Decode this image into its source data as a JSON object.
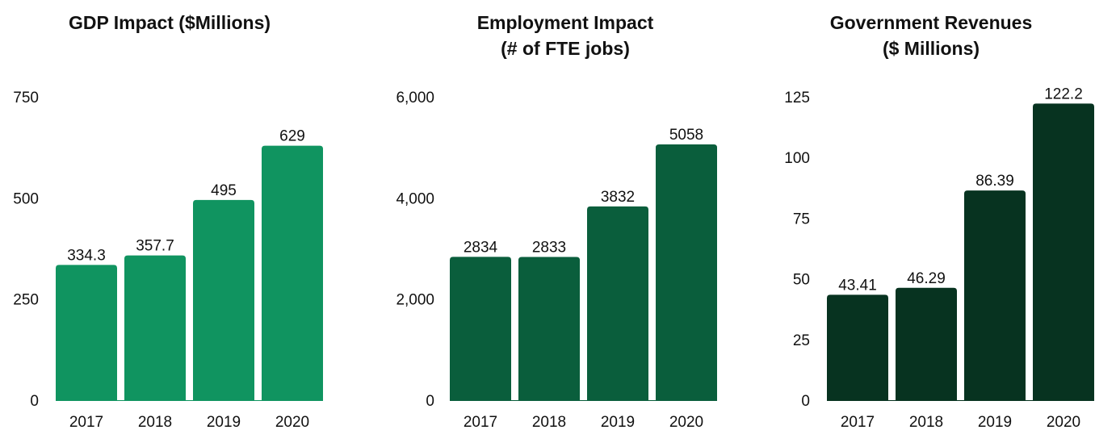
{
  "chart_data": [
    {
      "type": "bar",
      "title": [
        "GDP Impact ($Millions)"
      ],
      "categories": [
        "2017",
        "2018",
        "2019",
        "2020"
      ],
      "values": [
        334.3,
        357.7,
        495,
        629
      ],
      "value_labels": [
        "334.3",
        "357.7",
        "495",
        "629"
      ],
      "yticks": [
        0,
        250,
        500,
        750
      ],
      "ytick_labels": [
        "0",
        "250",
        "500",
        "750"
      ],
      "ylim": [
        0,
        750
      ],
      "grid": false,
      "color": "#109460"
    },
    {
      "type": "bar",
      "title": [
        "Employment Impact",
        "(# of FTE jobs)"
      ],
      "categories": [
        "2017",
        "2018",
        "2019",
        "2020"
      ],
      "values": [
        2834,
        2833,
        3832,
        5058
      ],
      "value_labels": [
        "2834",
        "2833",
        "3832",
        "5058"
      ],
      "yticks": [
        0,
        2000,
        4000,
        6000
      ],
      "ytick_labels": [
        "0",
        "2,000",
        "4,000",
        "6,000"
      ],
      "ylim": [
        0,
        6000
      ],
      "grid": false,
      "color": "#0a5e3c"
    },
    {
      "type": "bar",
      "title": [
        "Government Revenues",
        "($ Millions)"
      ],
      "categories": [
        "2017",
        "2018",
        "2019",
        "2020"
      ],
      "values": [
        43.41,
        46.29,
        86.39,
        122.2
      ],
      "value_labels": [
        "43.41",
        "46.29",
        "86.39",
        "122.2"
      ],
      "yticks": [
        0,
        25,
        50,
        75,
        100,
        125
      ],
      "ytick_labels": [
        "0",
        "25",
        "50",
        "75",
        "100",
        "125"
      ],
      "ylim": [
        0,
        125
      ],
      "grid": false,
      "color": "#073320"
    }
  ]
}
